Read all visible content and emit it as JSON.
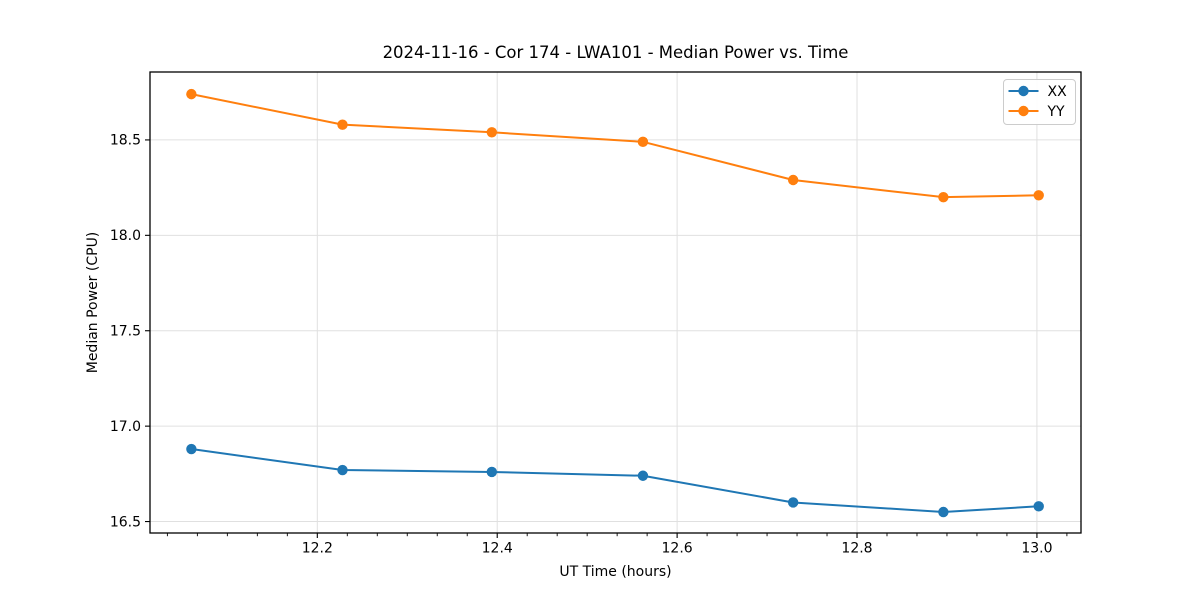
{
  "chart_data": {
    "type": "line",
    "title": "2024-11-16 - Cor 174 - LWA101 - Median Power vs. Time",
    "xlabel": "UT Time (hours)",
    "ylabel": "Median Power (CPU)",
    "x": [
      12.06,
      12.228,
      12.394,
      12.562,
      12.729,
      12.896,
      13.002
    ],
    "series": [
      {
        "name": "XX",
        "color": "#1f77b4",
        "values": [
          16.88,
          16.77,
          16.76,
          16.74,
          16.6,
          16.55,
          16.58
        ]
      },
      {
        "name": "YY",
        "color": "#ff7f0e",
        "values": [
          18.74,
          18.58,
          18.54,
          18.49,
          18.29,
          18.2,
          18.21
        ]
      }
    ],
    "xlim": [
      12.014,
      13.049
    ],
    "ylim": [
      16.44,
      18.856
    ],
    "xticks": {
      "values": [
        12.2,
        12.4,
        12.6,
        12.8,
        13.0
      ],
      "labels": [
        "12.2",
        "12.4",
        "12.6",
        "12.8",
        "13.0"
      ]
    },
    "yticks": {
      "values": [
        16.5,
        17.0,
        17.5,
        18.0,
        18.5
      ],
      "labels": [
        "16.5",
        "17.0",
        "17.5",
        "18.0",
        "18.5"
      ]
    },
    "x_minor_tick_step": 0.0333333,
    "grid": true,
    "grid_color": "#e0e0e0",
    "spine_color": "#000000",
    "background": "#ffffff",
    "marker": "o",
    "legend": {
      "position": "upper right",
      "entries": [
        "XX",
        "YY"
      ]
    }
  }
}
